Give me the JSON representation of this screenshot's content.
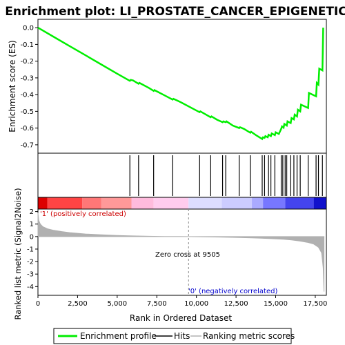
{
  "title": "Enrichment plot: LI_PROSTATE_CANCER_EPIGENETIC",
  "colors": {
    "profile": "#00ee00",
    "hits": "#000000",
    "metric": "#b0b0b0",
    "positive_label": "#cc0000",
    "negative_label": "#0000cc"
  },
  "chart_data": [
    {
      "type": "line",
      "name": "enrichment-score-panel",
      "ylabel": "Enrichment score (ES)",
      "xlim": [
        0,
        18200
      ],
      "ylim": [
        -0.75,
        0.05
      ],
      "yticks": [
        "0.0",
        "-0.1",
        "-0.2",
        "-0.3",
        "-0.4",
        "-0.5",
        "-0.6",
        "-0.7"
      ],
      "ytick_values": [
        0.0,
        -0.1,
        -0.2,
        -0.3,
        -0.4,
        -0.5,
        -0.6,
        -0.7
      ],
      "series": [
        {
          "name": "Enrichment profile",
          "x": [
            0,
            1000,
            2000,
            3000,
            4000,
            5000,
            5800,
            5850,
            6000,
            6350,
            6400,
            7000,
            7300,
            7350,
            8000,
            8500,
            8550,
            9000,
            10000,
            10200,
            10250,
            10900,
            10950,
            11300,
            11650,
            11700,
            11850,
            11900,
            12300,
            12700,
            12750,
            13000,
            13400,
            13450,
            13800,
            14150,
            14200,
            14300,
            14350,
            14500,
            14550,
            14700,
            14750,
            14950,
            15000,
            15200,
            15350,
            15400,
            15500,
            15550,
            15700,
            15750,
            15950,
            16000,
            16150,
            16200,
            16350,
            16400,
            16550,
            16600,
            17050,
            17100,
            17550,
            17600,
            17700,
            17750,
            17950,
            18000
          ],
          "y": [
            0.0,
            -0.055,
            -0.11,
            -0.165,
            -0.22,
            -0.275,
            -0.318,
            -0.312,
            -0.315,
            -0.335,
            -0.33,
            -0.36,
            -0.378,
            -0.373,
            -0.405,
            -0.43,
            -0.425,
            -0.445,
            -0.495,
            -0.505,
            -0.5,
            -0.535,
            -0.53,
            -0.55,
            -0.565,
            -0.56,
            -0.565,
            -0.56,
            -0.585,
            -0.6,
            -0.595,
            -0.605,
            -0.628,
            -0.622,
            -0.645,
            -0.665,
            -0.655,
            -0.658,
            -0.648,
            -0.655,
            -0.64,
            -0.648,
            -0.632,
            -0.642,
            -0.625,
            -0.635,
            -0.605,
            -0.59,
            -0.598,
            -0.575,
            -0.585,
            -0.56,
            -0.57,
            -0.54,
            -0.548,
            -0.52,
            -0.53,
            -0.49,
            -0.5,
            -0.46,
            -0.48,
            -0.39,
            -0.41,
            -0.33,
            -0.34,
            -0.245,
            -0.255,
            0.0
          ]
        }
      ]
    },
    {
      "type": "line",
      "name": "ranked-metric-panel",
      "ylabel": "Ranked list metric (Signal2Noise)",
      "xlabel": "Rank in Ordered Dataset",
      "xlim": [
        0,
        18200
      ],
      "ylim": [
        -4.7,
        2.2
      ],
      "xticks": [
        "0",
        "2,500",
        "5,000",
        "7,500",
        "10,000",
        "12,500",
        "15,000",
        "17,500"
      ],
      "xtick_values": [
        0,
        2500,
        5000,
        7500,
        10000,
        12500,
        15000,
        17500
      ],
      "yticks": [
        "2",
        "1",
        "0",
        "-1",
        "-2",
        "-3",
        "-4"
      ],
      "ytick_values": [
        2,
        1,
        0,
        -1,
        -2,
        -3,
        -4
      ],
      "series": [
        {
          "name": "Ranking metric scores",
          "x": [
            0,
            50,
            150,
            300,
            600,
            1000,
            1500,
            2000,
            2500,
            3000,
            4000,
            5000,
            6000,
            7000,
            8000,
            9000,
            9505,
            10500,
            11500,
            12500,
            13500,
            14500,
            15500,
            16000,
            16500,
            17000,
            17400,
            17700,
            17900,
            18000,
            18050
          ],
          "y": [
            1.9,
            1.3,
            1.0,
            0.8,
            0.62,
            0.5,
            0.4,
            0.32,
            0.26,
            0.21,
            0.14,
            0.09,
            0.05,
            0.025,
            0.01,
            0.003,
            0.0,
            -0.02,
            -0.04,
            -0.07,
            -0.1,
            -0.15,
            -0.22,
            -0.27,
            -0.35,
            -0.46,
            -0.6,
            -0.85,
            -1.3,
            -2.5,
            -4.4
          ]
        }
      ],
      "annotations": {
        "zero_cross": "Zero cross at 9505",
        "zero_cross_x": 9505,
        "positive": "'1' (positively correlated)",
        "negative": "'0' (negatively correlated)"
      }
    },
    {
      "type": "scatter",
      "name": "hits",
      "hits_x": [
        5800,
        6350,
        7300,
        8500,
        10200,
        10900,
        11650,
        11850,
        12700,
        13400,
        14150,
        14300,
        14550,
        14700,
        14950,
        15350,
        15450,
        15600,
        15700,
        15950,
        16150,
        16350,
        16550,
        17050,
        17550,
        17700,
        17950
      ]
    }
  ],
  "heatmap": {
    "segments": [
      {
        "end": 600,
        "color": "#dd0000"
      },
      {
        "end": 2800,
        "color": "#ff4444"
      },
      {
        "end": 4000,
        "color": "#ff7777"
      },
      {
        "end": 5900,
        "color": "#ff9999"
      },
      {
        "end": 7300,
        "color": "#ffbbdd"
      },
      {
        "end": 9500,
        "color": "#ffccee"
      },
      {
        "end": 11600,
        "color": "#ddddff"
      },
      {
        "end": 13500,
        "color": "#ccccff"
      },
      {
        "end": 14200,
        "color": "#aaaaff"
      },
      {
        "end": 15600,
        "color": "#7777ff"
      },
      {
        "end": 17400,
        "color": "#4444ee"
      },
      {
        "end": 18200,
        "color": "#1111cc"
      }
    ]
  },
  "legend": {
    "items": [
      {
        "label": "Enrichment profile",
        "color": "#00ee00"
      },
      {
        "label": "Hits",
        "color": "#000000"
      },
      {
        "label": "Ranking metric scores",
        "color": "#b0b0b0"
      }
    ]
  }
}
